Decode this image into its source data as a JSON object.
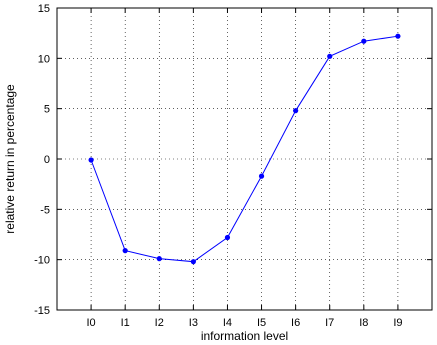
{
  "chart_data": {
    "type": "line",
    "title": "",
    "xlabel": "information level",
    "ylabel": "relative return in percentage",
    "categories": [
      "I0",
      "I1",
      "I2",
      "I3",
      "I4",
      "I5",
      "I6",
      "I7",
      "I8",
      "I9"
    ],
    "series": [
      {
        "values": [
          -0.1,
          -9.1,
          -9.9,
          -10.2,
          -7.8,
          -1.7,
          4.8,
          10.2,
          11.7,
          12.2
        ],
        "color": "#0000ff",
        "marker": "dot"
      }
    ],
    "ylim": [
      -15,
      15
    ],
    "yticks": [
      -15,
      -10,
      -5,
      0,
      5,
      10,
      15
    ],
    "grid": "dotted both axes",
    "legend": "none"
  }
}
